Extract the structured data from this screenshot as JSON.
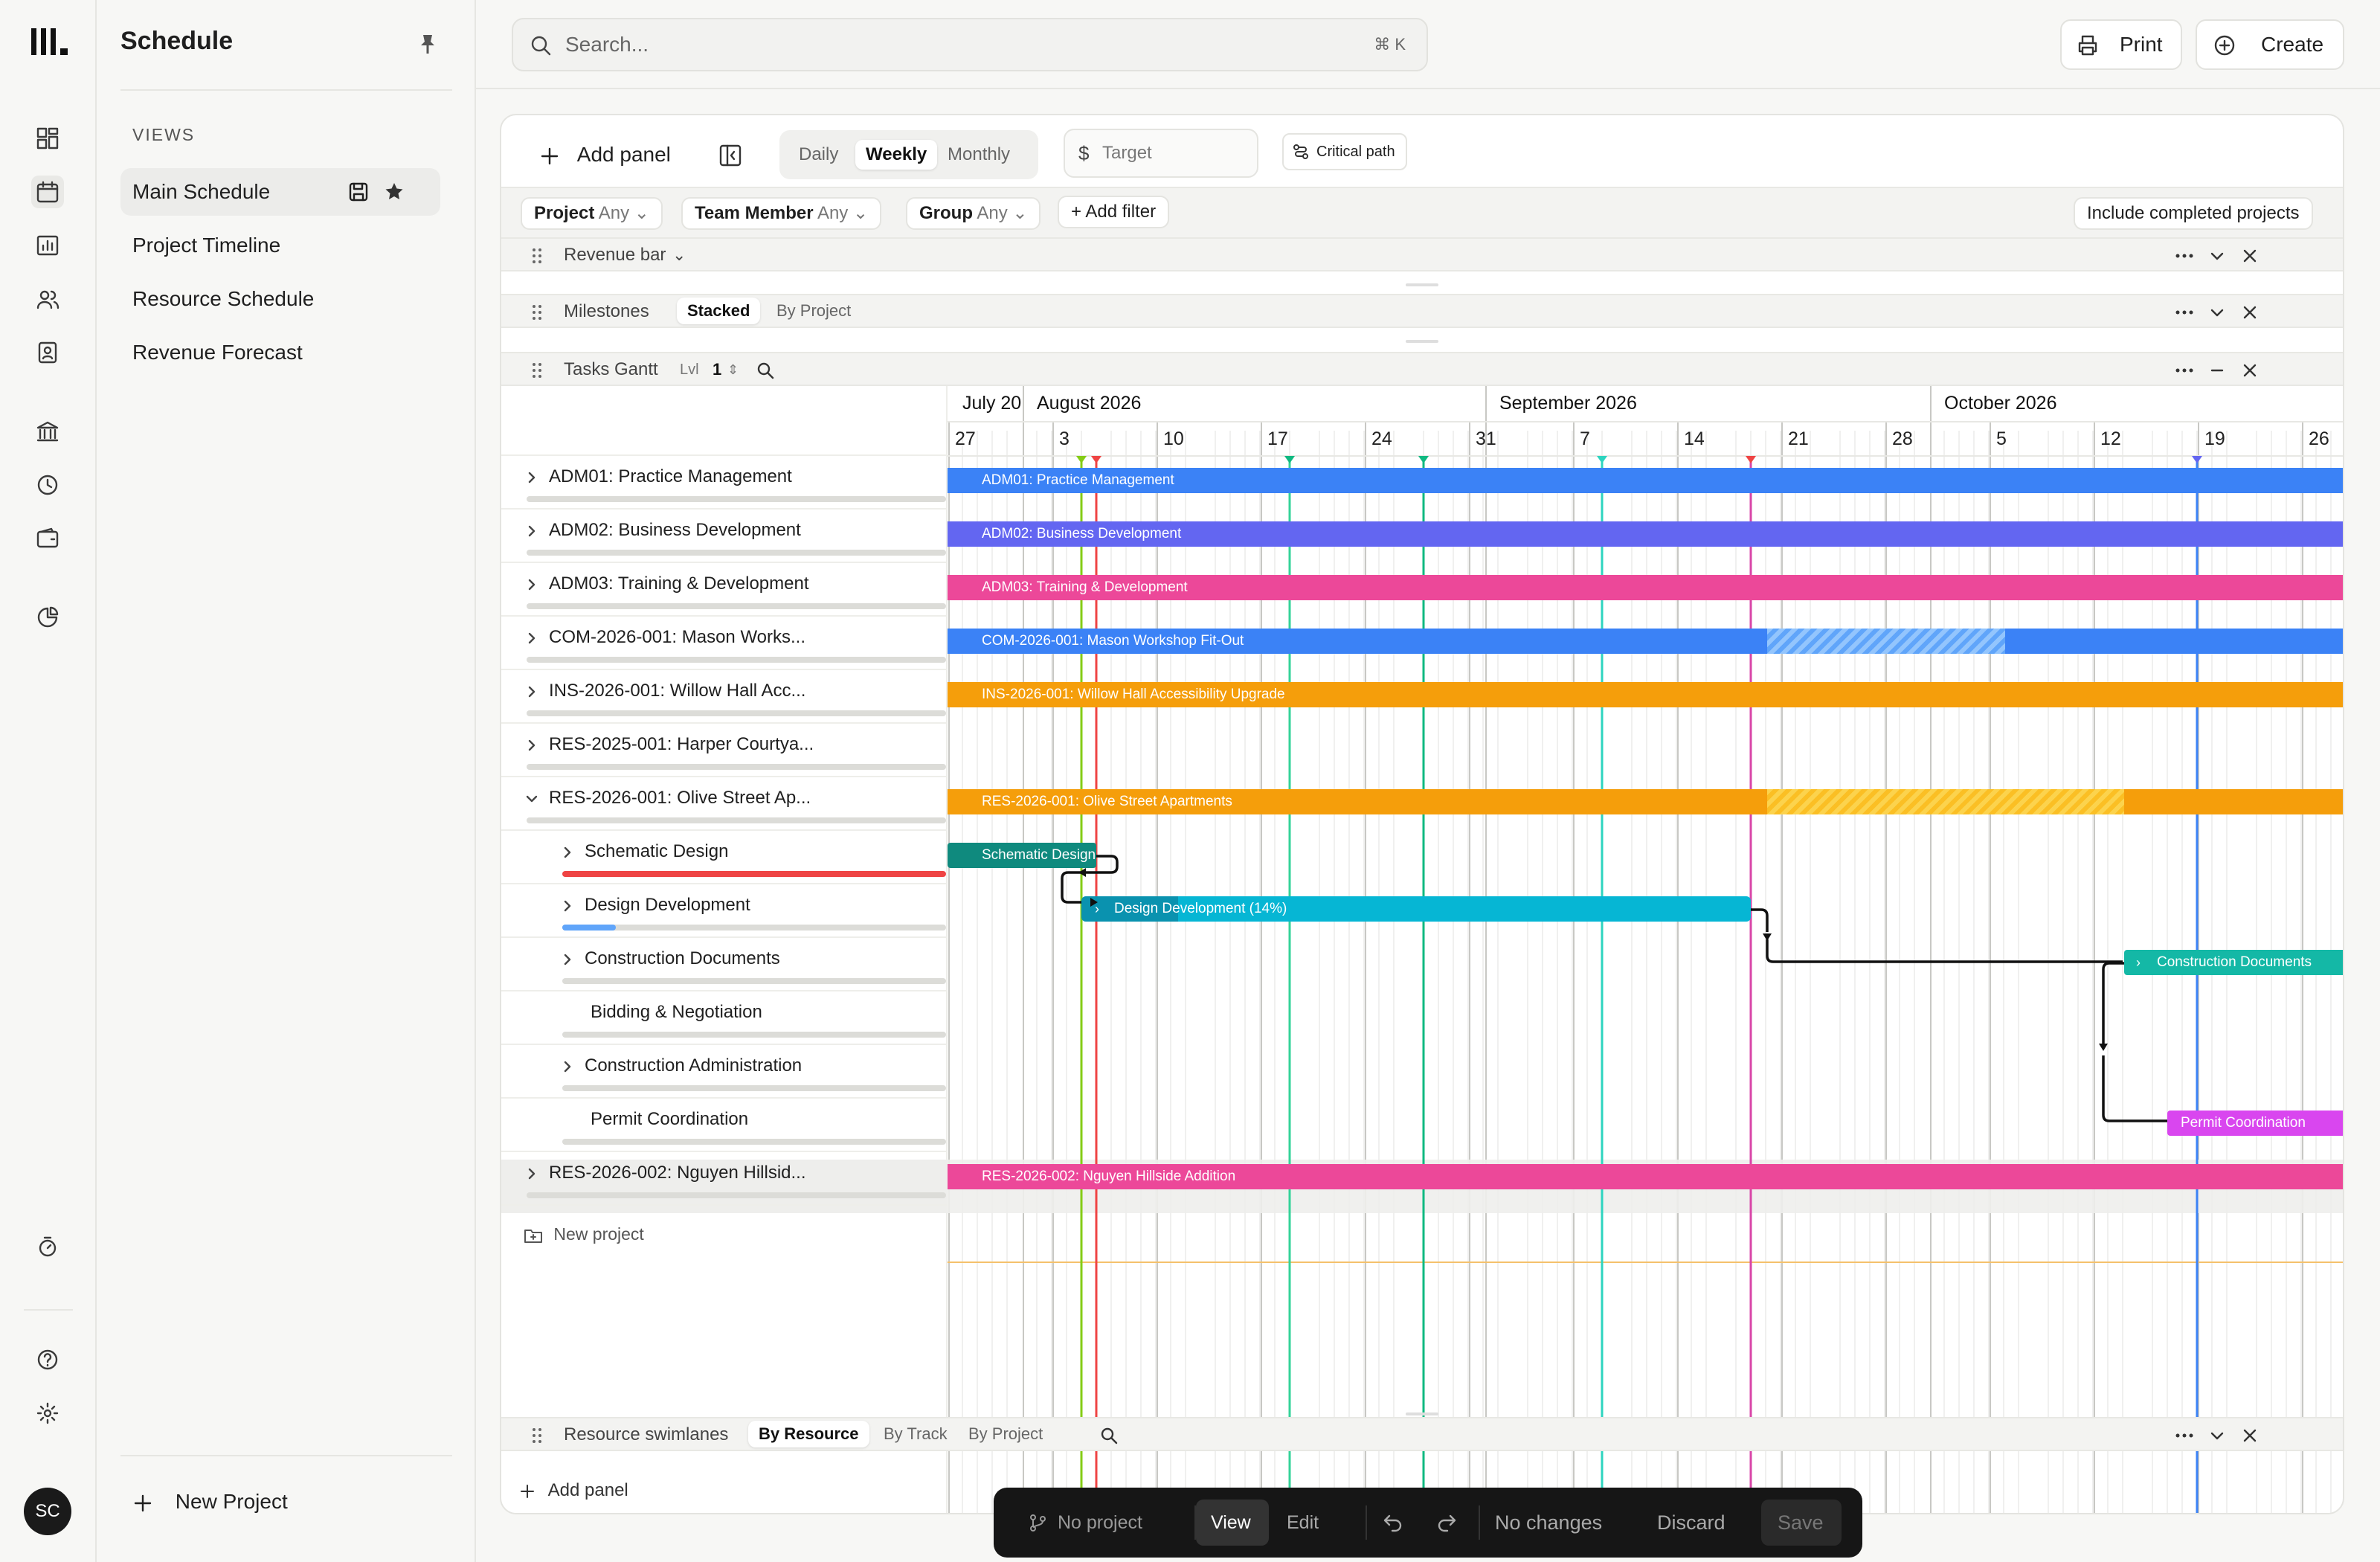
{
  "sidebar": {
    "title": "Schedule",
    "views_heading": "VIEWS",
    "views": [
      {
        "label": "Main Schedule"
      },
      {
        "label": "Project Timeline"
      },
      {
        "label": "Resource Schedule"
      },
      {
        "label": "Revenue Forecast"
      }
    ],
    "new_project": "New Project",
    "avatar": "SC"
  },
  "topbar": {
    "search_placeholder": "Search...",
    "search_shortcut": "⌘ K",
    "print": "Print",
    "create": "Create"
  },
  "toolbar": {
    "add_panel": "Add panel",
    "periods": [
      "Daily",
      "Weekly",
      "Monthly"
    ],
    "active_period": "Weekly",
    "target_placeholder": "Target",
    "critical_path": "Critical path"
  },
  "filters": {
    "items": [
      {
        "name": "Project",
        "value": "Any"
      },
      {
        "name": "Team Member",
        "value": "Any"
      },
      {
        "name": "Group",
        "value": "Any"
      }
    ],
    "add_filter": "Add filter",
    "include_completed": "Include completed projects"
  },
  "panels": {
    "revenue_bar": "Revenue bar",
    "milestones": {
      "title": "Milestones",
      "tabs": [
        "Stacked",
        "By Project"
      ],
      "active": "Stacked"
    },
    "tasks_gantt": {
      "title": "Tasks Gantt",
      "lvl_label": "Lvl",
      "lvl_value": "1"
    },
    "resource_swimlanes": {
      "title": "Resource swimlanes",
      "tabs": [
        "By Resource",
        "By Track",
        "By Project"
      ],
      "active": "By Resource"
    },
    "add_panel": "Add panel"
  },
  "gantt": {
    "months": [
      "July 20",
      "August 2026",
      "September 2026",
      "October 2026"
    ],
    "weeks": [
      "27",
      "3",
      "10",
      "17",
      "24",
      "31",
      "7",
      "14",
      "21",
      "28",
      "5",
      "12",
      "19",
      "26"
    ],
    "rows": [
      {
        "label": "ADM01: Practice Management",
        "bar": "ADM01: Practice Management",
        "color": "#3b82f6"
      },
      {
        "label": "ADM02: Business Development",
        "bar": "ADM02: Business Development",
        "color": "#6366f1"
      },
      {
        "label": "ADM03: Training & Development",
        "bar": "ADM03: Training & Development",
        "color": "#ec4899"
      },
      {
        "label": "COM-2026-001: Mason Works...",
        "bar": "COM-2026-001: Mason Workshop Fit-Out",
        "color": "#3b82f6"
      },
      {
        "label": "INS-2026-001: Willow Hall Acc...",
        "bar": "INS-2026-001: Willow Hall Accessibility Upgrade",
        "color": "#f59e0b"
      },
      {
        "label": "RES-2025-001: Harper Courtya...",
        "bar": "",
        "color": ""
      },
      {
        "label": "RES-2026-001: Olive Street Ap...",
        "bar": "RES-2026-001: Olive Street Apartments",
        "color": "#f59e0b"
      },
      {
        "label": "Schematic Design",
        "bar": "Schematic Design",
        "color": "#0f8a7e"
      },
      {
        "label": "Design Development",
        "bar": "Design Development (14%)",
        "color": "#06b6d4"
      },
      {
        "label": "Construction Documents",
        "bar": "Construction Documents",
        "color": "#14b8a6"
      },
      {
        "label": "Bidding & Negotiation",
        "bar": "",
        "color": ""
      },
      {
        "label": "Construction Administration",
        "bar": "",
        "color": ""
      },
      {
        "label": "Permit Coordination",
        "bar": "Permit Coordination",
        "color": "#d946ef"
      },
      {
        "label": "RES-2026-002: Nguyen Hillsid...",
        "bar": "RES-2026-002: Nguyen Hillside Addition",
        "color": "#ec4899"
      }
    ],
    "new_project": "New project"
  },
  "bottom_bar": {
    "project": "No project",
    "view": "View",
    "edit": "Edit",
    "status": "No changes",
    "discard": "Discard",
    "save": "Save"
  }
}
